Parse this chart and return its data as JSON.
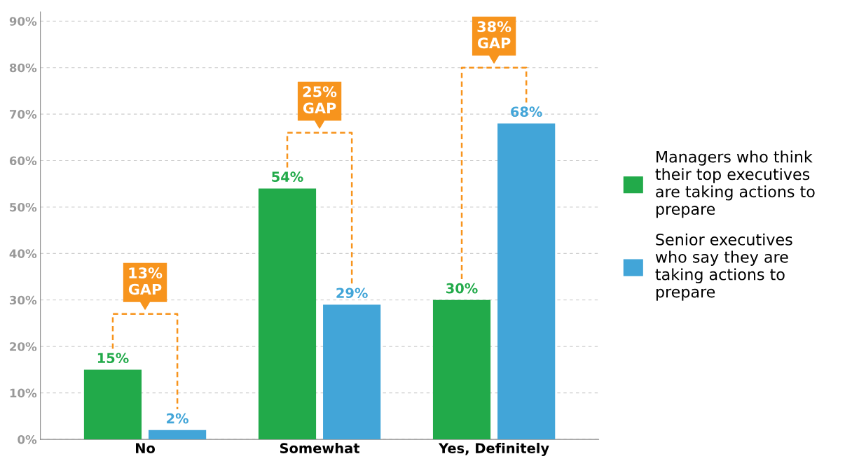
{
  "chart_data": {
    "type": "bar",
    "categories": [
      "No",
      "Somewhat",
      "Yes, Definitely"
    ],
    "series": [
      {
        "name": "Managers who think\ntheir top executives\nare taking actions to\nprepare",
        "color": "#22aa4a",
        "values": [
          15,
          54,
          30
        ],
        "value_labels": [
          "15%",
          "54%",
          "30%"
        ]
      },
      {
        "name": "Senior executives\nwho say they are\ntaking actions to\nprepare",
        "color": "#42a5d8",
        "values": [
          2,
          29,
          68
        ],
        "value_labels": [
          "2%",
          "29%",
          "68%"
        ]
      }
    ],
    "ylim": [
      0,
      92
    ],
    "yticks": [
      {
        "value": 0,
        "label": "0%"
      },
      {
        "value": 10,
        "label": "10%"
      },
      {
        "value": 20,
        "label": "20%"
      },
      {
        "value": 30,
        "label": "30%"
      },
      {
        "value": 40,
        "label": "40%"
      },
      {
        "value": 50,
        "label": "50%"
      },
      {
        "value": 60,
        "label": "60%"
      },
      {
        "value": 70,
        "label": "70%"
      },
      {
        "value": 80,
        "label": "80%"
      },
      {
        "value": 90,
        "label": "90%"
      }
    ],
    "grid": "y",
    "legend": "right",
    "annotations": [
      "13%\nGAP",
      "25%\nGAP",
      "38%\nGAP"
    ]
  }
}
